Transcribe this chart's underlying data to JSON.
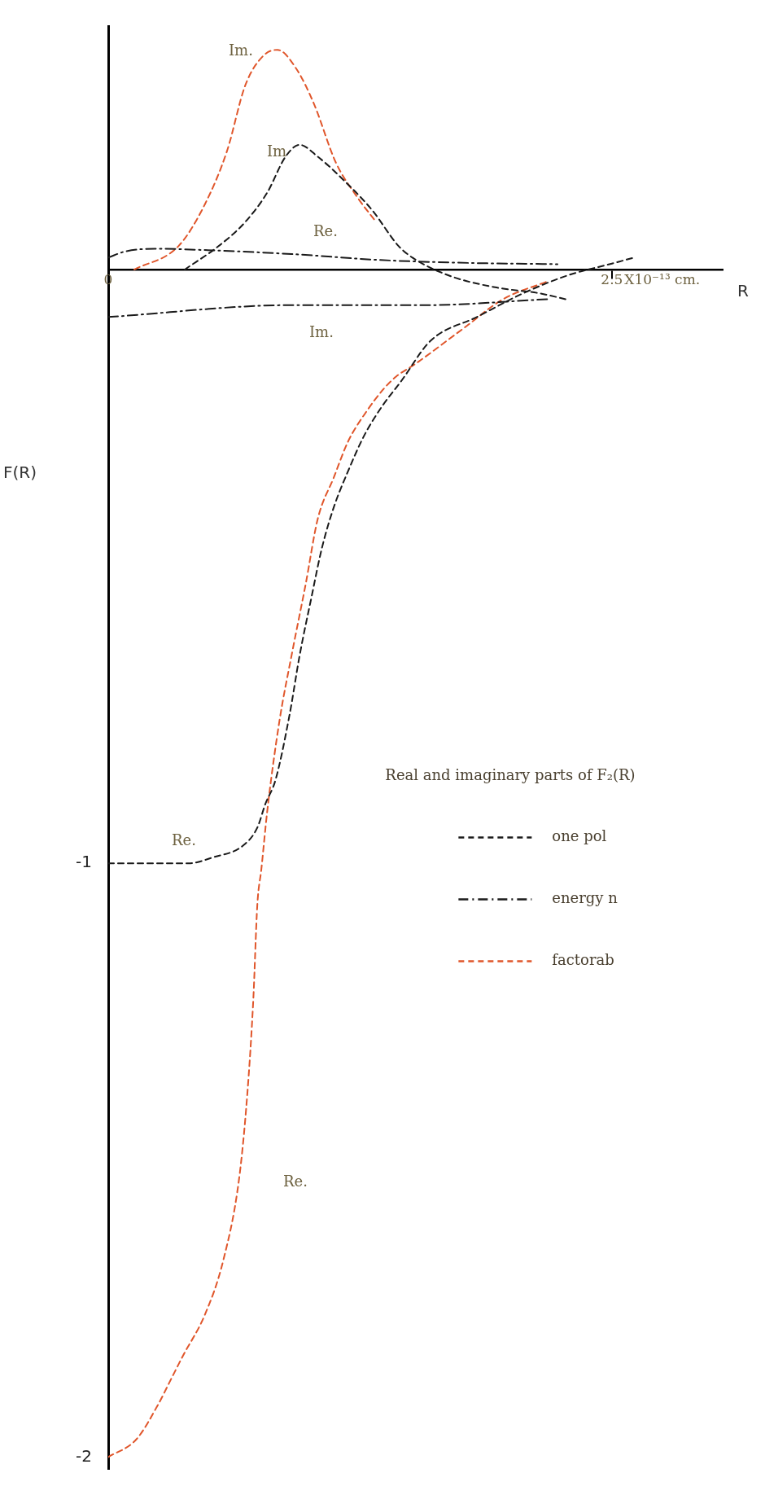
{
  "chart_data": {
    "type": "line",
    "xlabel": "R",
    "ylabel": "F(R)",
    "legend_title": "Real and imaginary parts of F₂(R)",
    "xlim": [
      0,
      3.05
    ],
    "ylim": [
      -2.02,
      0.41
    ],
    "xticks": [
      0,
      2.5
    ],
    "yticks": [
      {
        "value": 0,
        "label": null
      },
      {
        "value": -1,
        "label": "-1"
      },
      {
        "value": -2,
        "label": "-2"
      }
    ],
    "grid": false,
    "legend": "right",
    "marker": "none",
    "series": [
      {
        "name": "one pol",
        "color": "#1a1a1a",
        "line_style": "dashed",
        "x": [
          0,
          0.4,
          0.52,
          0.67,
          0.74,
          0.78,
          0.83,
          0.9,
          0.95,
          1.01,
          1.06,
          1.12,
          1.19,
          1.27,
          1.36,
          1.45,
          1.6,
          1.83,
          2.06,
          2.28,
          2.5,
          2.61
        ],
        "values": [
          -1,
          -1,
          -0.99,
          -0.97,
          -0.94,
          -0.9,
          -0.86,
          -0.75,
          -0.65,
          -0.55,
          -0.47,
          -0.4,
          -0.34,
          -0.28,
          -0.23,
          -0.19,
          -0.12,
          -0.08,
          -0.04,
          -0.01,
          0.01,
          0.02
        ]
      },
      {
        "color": "#1a1a1a",
        "line_style": "dashed",
        "x": [
          0.38,
          0.55,
          0.68,
          0.79,
          0.88,
          0.95,
          1.04,
          1.17,
          1.31,
          1.44,
          1.51,
          1.69,
          1.92,
          2.14,
          2.27
        ],
        "values": [
          0,
          0.04,
          0.08,
          0.13,
          0.19,
          0.21,
          0.19,
          0.15,
          0.1,
          0.04,
          0.02,
          -0.01,
          -0.03,
          -0.04,
          -0.05
        ]
      },
      {
        "name": "energy n",
        "color": "#1a1a1a",
        "line_style": "dashdot",
        "x": [
          0,
          0.08,
          0.23,
          0.46,
          0.91,
          1.35,
          1.8,
          2.23
        ],
        "values": [
          0.02,
          0.03,
          0.035,
          0.033,
          0.026,
          0.016,
          0.011,
          0.009
        ]
      },
      {
        "color": "#1a1a1a",
        "line_style": "dashdot",
        "x": [
          0,
          0.91,
          1.58,
          2.18
        ],
        "values": [
          -0.08,
          -0.06,
          -0.06,
          -0.05
        ]
      },
      {
        "name": "factorab",
        "color": "#e0562b",
        "line_style": "dashed",
        "x": [
          0,
          0.14,
          0.25,
          0.31,
          0.37,
          0.48,
          0.57,
          0.65,
          0.69,
          0.72,
          0.74,
          0.76,
          0.79,
          0.85,
          0.91,
          0.98,
          1.04,
          1.12,
          1.19,
          1.28,
          1.37,
          1.43,
          1.52,
          1.76,
          1.96,
          2.18
        ],
        "values": [
          -2,
          -1.97,
          -1.91,
          -1.87,
          -1.83,
          -1.76,
          -1.67,
          -1.53,
          -1.39,
          -1.23,
          -1.07,
          -1.01,
          -0.91,
          -0.76,
          -0.65,
          -0.53,
          -0.42,
          -0.35,
          -0.29,
          -0.24,
          -0.2,
          -0.18,
          -0.16,
          -0.1,
          -0.05,
          -0.02
        ]
      },
      {
        "color": "#e0562b",
        "line_style": "dashed",
        "x": [
          0.13,
          0.35,
          0.48,
          0.59,
          0.68,
          0.77,
          0.84,
          0.93,
          1.02,
          1.13,
          1.24,
          1.33
        ],
        "values": [
          0,
          0.04,
          0.11,
          0.2,
          0.31,
          0.36,
          0.37,
          0.34,
          0.28,
          0.18,
          0.12,
          0.08
        ]
      }
    ],
    "annotations": [
      "Im.",
      "Im",
      "Re.",
      "Im.",
      "Re.",
      "Re.",
      "X10⁻¹³ cm."
    ]
  }
}
